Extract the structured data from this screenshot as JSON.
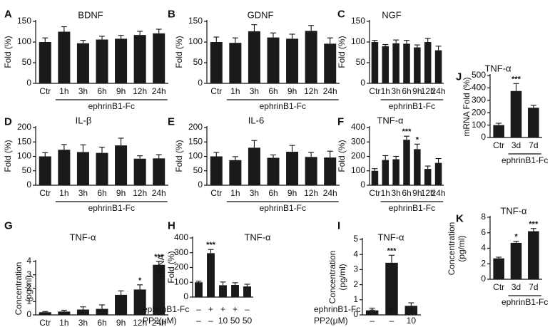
{
  "chart_data": [
    {
      "id": "A",
      "type": "bar",
      "panel_label": "A",
      "title": "BDNF",
      "ylabel": "Fold (%)",
      "ylim": [
        0,
        150
      ],
      "yticks": [
        0,
        50,
        100,
        150
      ],
      "categories": [
        "Ctr",
        "1h",
        "3h",
        "6h",
        "9h",
        "12h",
        "24h"
      ],
      "values": [
        100,
        125,
        97,
        106,
        108,
        117,
        121
      ],
      "errors": [
        10,
        12,
        7,
        8,
        8,
        9,
        10
      ],
      "significance": [
        "",
        "",
        "",
        "",
        "",
        "",
        ""
      ],
      "group_label": "ephrinB1-Fc"
    },
    {
      "id": "B",
      "type": "bar",
      "panel_label": "B",
      "title": "GDNF",
      "ylabel": "Fold (%)",
      "ylim": [
        0,
        150
      ],
      "yticks": [
        0,
        50,
        100,
        150
      ],
      "categories": [
        "Ctr",
        "1h",
        "3h",
        "6h",
        "9h",
        "12h",
        "24h"
      ],
      "values": [
        100,
        98,
        126,
        111,
        108,
        127,
        96
      ],
      "errors": [
        12,
        12,
        16,
        11,
        11,
        13,
        14
      ],
      "significance": [
        "",
        "",
        "",
        "",
        "",
        "",
        ""
      ],
      "group_label": "ephrinB1-Fc"
    },
    {
      "id": "C",
      "type": "bar",
      "panel_label": "C",
      "title": "NGF",
      "ylabel": "Fold (%)",
      "ylim": [
        0,
        150
      ],
      "yticks": [
        0,
        50,
        100,
        150
      ],
      "categories": [
        "Ctr",
        "1h",
        "3h",
        "6h",
        "9h",
        "12h",
        "24h"
      ],
      "values": [
        100,
        90,
        97,
        96,
        87,
        100,
        80
      ],
      "errors": [
        4,
        4,
        8,
        8,
        6,
        9,
        10
      ],
      "significance": [
        "",
        "",
        "",
        "",
        "",
        "",
        ""
      ],
      "group_label": "ephrinB1-Fc"
    },
    {
      "id": "D",
      "type": "bar",
      "panel_label": "D",
      "title": "IL-β",
      "ylabel": "Fold (%)",
      "ylim": [
        0,
        200
      ],
      "yticks": [
        0,
        50,
        100,
        150,
        200
      ],
      "categories": [
        "Ctr",
        "1h",
        "3h",
        "6h",
        "9h",
        "12h",
        "24h"
      ],
      "values": [
        100,
        123,
        115,
        112,
        138,
        92,
        93
      ],
      "errors": [
        13,
        18,
        25,
        20,
        25,
        10,
        13
      ],
      "significance": [
        "",
        "",
        "",
        "",
        "",
        "",
        ""
      ],
      "group_label": "ephrinB1-Fc"
    },
    {
      "id": "E",
      "type": "bar",
      "panel_label": "E",
      "title": "IL-6",
      "ylabel": "Fold (%)",
      "ylim": [
        0,
        200
      ],
      "yticks": [
        0,
        50,
        100,
        150,
        200
      ],
      "categories": [
        "Ctr",
        "1h",
        "3h",
        "6h",
        "9h",
        "12h",
        "24h"
      ],
      "values": [
        100,
        87,
        130,
        95,
        116,
        98,
        96
      ],
      "errors": [
        14,
        12,
        25,
        10,
        22,
        16,
        22
      ],
      "significance": [
        "",
        "",
        "",
        "",
        "",
        "",
        ""
      ],
      "group_label": "ephrinB1-Fc"
    },
    {
      "id": "F",
      "type": "bar",
      "panel_label": "F",
      "title": "TNF-α",
      "ylabel": "Fold (%)",
      "ylim": [
        0,
        400
      ],
      "yticks": [
        0,
        100,
        200,
        300,
        400
      ],
      "categories": [
        "Ctr",
        "1h",
        "3h",
        "6h",
        "9h",
        "12h",
        "24h"
      ],
      "values": [
        100,
        175,
        180,
        315,
        250,
        113,
        155
      ],
      "errors": [
        15,
        30,
        20,
        25,
        35,
        20,
        30
      ],
      "significance": [
        "",
        "",
        "",
        "***",
        "*",
        "",
        ""
      ],
      "group_label": "ephrinB1-Fc"
    },
    {
      "id": "G",
      "type": "bar",
      "panel_label": "G",
      "title": "TNF-α",
      "ylabel": "Concentration (pg/ml)",
      "ylim": [
        0,
        4
      ],
      "yticks": [
        0,
        1,
        2,
        3,
        4
      ],
      "categories": [
        "Ctr",
        "1h",
        "3h",
        "6h",
        "9h",
        "12h",
        "24h"
      ],
      "values": [
        0.2,
        0.25,
        0.4,
        0.45,
        1.5,
        1.9,
        3.75
      ],
      "errors": [
        0.05,
        0.1,
        0.2,
        0.3,
        0.3,
        0.35,
        0.25
      ],
      "significance": [
        "",
        "",
        "",
        "",
        "",
        "*",
        "***"
      ],
      "group_label": "ephrinB1-Fc"
    },
    {
      "id": "H",
      "type": "bar",
      "panel_label": "H",
      "title": "TNF-α",
      "ylabel": "mRNA Fold (%)",
      "ylim": [
        0,
        400
      ],
      "yticks": [
        0,
        100,
        200,
        300,
        400
      ],
      "categories": [
        "",
        "",
        "",
        "",
        ""
      ],
      "values": [
        100,
        297,
        80,
        82,
        72
      ],
      "errors": [
        8,
        25,
        22,
        15,
        15
      ],
      "significance": [
        "",
        "***",
        "",
        "",
        ""
      ],
      "condition_rows": [
        {
          "label": "ephrinB1-Fc",
          "marks": [
            "–",
            "+",
            "+",
            "+",
            "–"
          ]
        },
        {
          "label": "PP2(μM)",
          "marks": [
            "–",
            "–",
            "10",
            "50",
            "50"
          ]
        }
      ]
    },
    {
      "id": "I",
      "type": "bar",
      "panel_label": "I",
      "title": "TNF-α",
      "ylabel": "Concentration (pg/ml)",
      "ylim": [
        0,
        5
      ],
      "yticks": [
        0,
        1,
        2,
        3,
        4,
        5
      ],
      "categories": [
        "",
        "",
        ""
      ],
      "values": [
        0.3,
        3.45,
        0.6
      ],
      "errors": [
        0.15,
        0.5,
        0.2
      ],
      "significance": [
        "",
        "***",
        ""
      ],
      "condition_rows": [
        {
          "label": "ephrinB1-Fc",
          "marks": [
            "–",
            "+",
            "+"
          ]
        },
        {
          "label": "PP2(μM)",
          "marks": [
            "–",
            "–",
            "10"
          ]
        }
      ]
    },
    {
      "id": "J",
      "type": "bar",
      "panel_label": "J",
      "title": "TNF-α",
      "ylabel": "mRNA Fold (%)",
      "ylim": [
        0,
        500
      ],
      "yticks": [
        0,
        100,
        200,
        300,
        400,
        500
      ],
      "categories": [
        "Ctr",
        "3d",
        "7d"
      ],
      "values": [
        100,
        375,
        240
      ],
      "errors": [
        15,
        60,
        20
      ],
      "significance": [
        "",
        "***",
        ""
      ],
      "group_label": "ephrinB1-Fc"
    },
    {
      "id": "K",
      "type": "bar",
      "panel_label": "K",
      "title": "TNF-α",
      "ylabel": "Concentration (pg/ml)",
      "ylim": [
        0,
        8
      ],
      "yticks": [
        0,
        2,
        4,
        6,
        8
      ],
      "categories": [
        "Ctr",
        "3d",
        "7d"
      ],
      "values": [
        2.7,
        4.7,
        6.2
      ],
      "errors": [
        0.15,
        0.2,
        0.35
      ],
      "significance": [
        "",
        "*",
        "***"
      ],
      "group_label": "ephrinB1-Fc"
    }
  ]
}
